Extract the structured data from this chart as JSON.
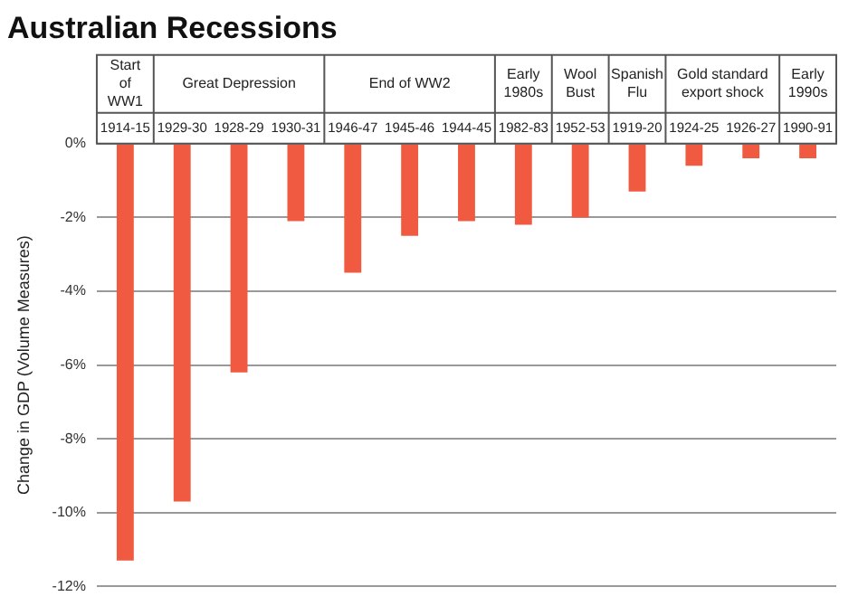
{
  "chart_data": {
    "type": "bar",
    "title": "Australian Recessions",
    "ylabel": "Change in GDP (Volume Measures)",
    "categories": [
      "1914-15",
      "1929-30",
      "1928-29",
      "1930-31",
      "1946-47",
      "1945-46",
      "1944-45",
      "1982-83",
      "1952-53",
      "1919-20",
      "1924-25",
      "1926-27",
      "1990-91"
    ],
    "values": [
      -11.3,
      -9.7,
      -6.2,
      -2.1,
      -3.5,
      -2.5,
      -2.1,
      -2.2,
      -2.0,
      -1.3,
      -0.6,
      -0.4,
      -0.4
    ],
    "color": "#f05a40",
    "ylim": [
      -12,
      0
    ],
    "yticks": [
      {
        "value": 0,
        "label": "0%"
      },
      {
        "value": -2,
        "label": "-2%"
      },
      {
        "value": -4,
        "label": "-4%"
      },
      {
        "value": -6,
        "label": "-6%"
      },
      {
        "value": -8,
        "label": "-8%"
      },
      {
        "value": -10,
        "label": "-10%"
      },
      {
        "value": -12,
        "label": "-12%"
      }
    ],
    "grid": "y",
    "annotations": [
      "Start of WW1",
      "Great Depression",
      "End of WW2",
      "Early 1980s",
      "Wool Bust",
      "Spanish Flu",
      "Gold standard export shock",
      "Early 1990s"
    ]
  }
}
